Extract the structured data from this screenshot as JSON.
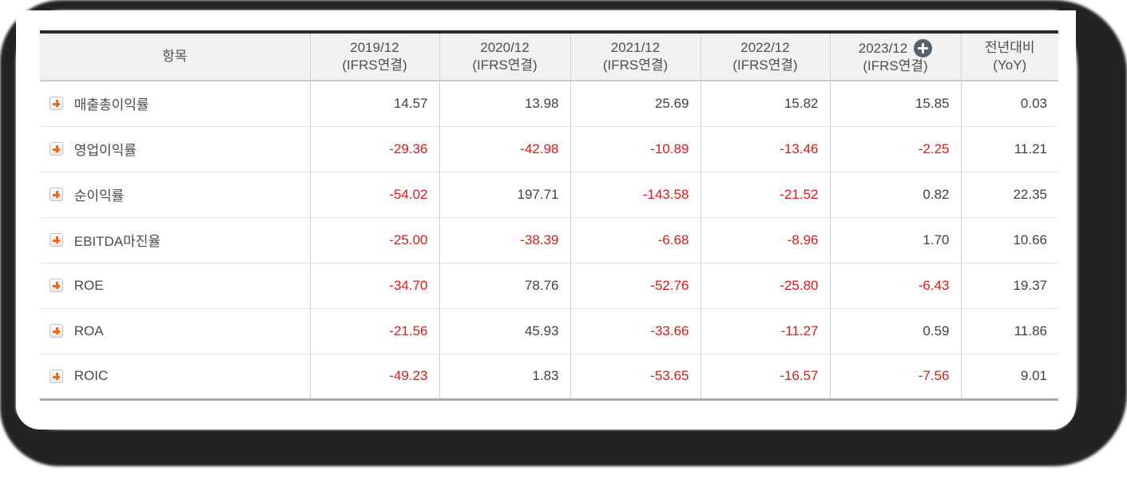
{
  "table": {
    "item_header": "항목",
    "basis_label": "(IFRS연결)",
    "columns": [
      {
        "period": "2019/12",
        "basis": "(IFRS연결)"
      },
      {
        "period": "2020/12",
        "basis": "(IFRS연결)"
      },
      {
        "period": "2021/12",
        "basis": "(IFRS연결)"
      },
      {
        "period": "2022/12",
        "basis": "(IFRS연결)"
      },
      {
        "period": "2023/12",
        "basis": "(IFRS연결)",
        "has_add_icon": true
      }
    ],
    "yoy_header": {
      "line1": "전년대비",
      "line2": "(YoY)"
    },
    "rows": [
      {
        "label": "매출총이익률",
        "values": [
          "14.57",
          "13.98",
          "25.69",
          "15.82",
          "15.85",
          "0.03"
        ]
      },
      {
        "label": "영업이익률",
        "values": [
          "-29.36",
          "-42.98",
          "-10.89",
          "-13.46",
          "-2.25",
          "11.21"
        ]
      },
      {
        "label": "순이익률",
        "values": [
          "-54.02",
          "197.71",
          "-143.58",
          "-21.52",
          "0.82",
          "22.35"
        ]
      },
      {
        "label": "EBITDA마진율",
        "values": [
          "-25.00",
          "-38.39",
          "-6.68",
          "-8.96",
          "1.70",
          "10.66"
        ]
      },
      {
        "label": "ROE",
        "values": [
          "-34.70",
          "78.76",
          "-52.76",
          "-25.80",
          "-6.43",
          "19.37"
        ]
      },
      {
        "label": "ROA",
        "values": [
          "-21.56",
          "45.93",
          "-33.66",
          "-11.27",
          "0.59",
          "11.86"
        ]
      },
      {
        "label": "ROIC",
        "values": [
          "-49.23",
          "1.83",
          "-53.65",
          "-16.57",
          "-7.56",
          "9.01"
        ]
      }
    ],
    "icons": {
      "row_expand": "plus-icon",
      "header_add": "plus-circle-icon"
    },
    "colors": {
      "negative_value": "#e41717",
      "positive_value": "#414141",
      "accent_orange": "#ee6a16",
      "header_add_circle": "#57606d",
      "header_background": "#f1f1ef",
      "frame_border": "#232323"
    }
  }
}
